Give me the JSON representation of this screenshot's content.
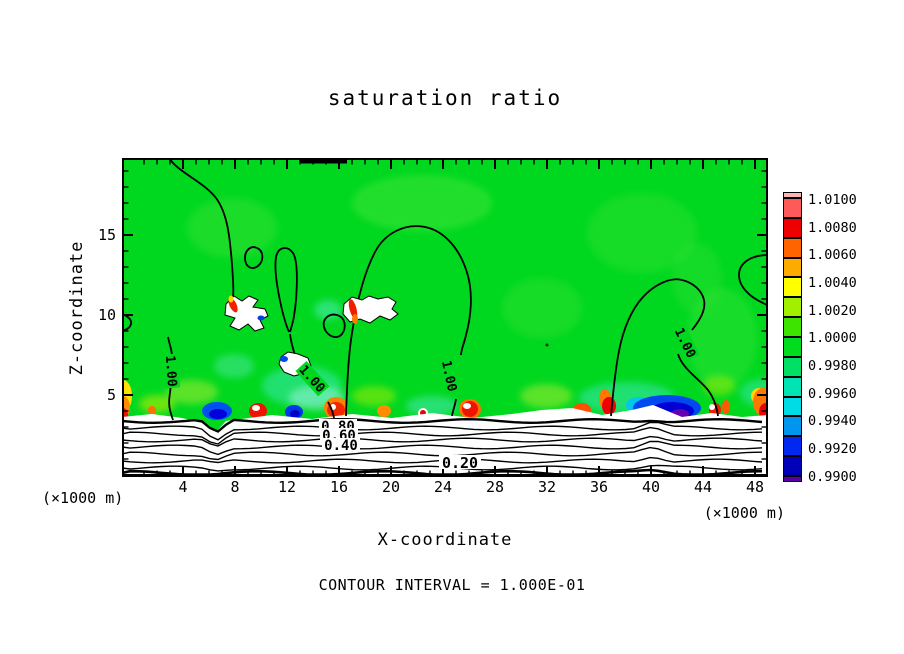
{
  "title": "saturation ratio",
  "axes": {
    "x": {
      "label": "X-coordinate",
      "unit_left": "(×1000 m)",
      "unit_right": "(×1000 m)",
      "ticks": [
        "4",
        "8",
        "12",
        "16",
        "20",
        "24",
        "28",
        "32",
        "36",
        "40",
        "44",
        "48"
      ]
    },
    "z": {
      "label": "Z-coordinate",
      "ticks": [
        "15",
        "10",
        "5"
      ]
    }
  },
  "colorbar": {
    "labels": [
      "1.0100",
      "1.0080",
      "1.0060",
      "1.0040",
      "1.0020",
      "1.0000",
      "0.9980",
      "0.9960",
      "0.9940",
      "0.9920",
      "0.9900"
    ],
    "colors": [
      "#ffb4b4",
      "#ff5a5a",
      "#ee0000",
      "#ff6400",
      "#ffaa00",
      "#ffff00",
      "#a0f000",
      "#3ce400",
      "#00dc1e",
      "#00e064",
      "#00e4b4",
      "#00dce6",
      "#0096f0",
      "#0028f0",
      "#0000b9",
      "#5a00a8"
    ]
  },
  "contour_labels": {
    "one": "1.00",
    "l080": "0.80",
    "l060": "0.60",
    "l040": "0.40",
    "l020": "0.20"
  },
  "footer": "CONTOUR INTERVAL = 1.000E-01",
  "chart_data": {
    "type": "heatmap",
    "title": "saturation ratio",
    "xlabel": "X-coordinate",
    "ylabel": "Z-coordinate",
    "x_units": "×1000 m",
    "z_units": "×1000 m",
    "x_ticks": [
      4,
      8,
      12,
      16,
      20,
      24,
      28,
      32,
      36,
      40,
      44,
      48
    ],
    "z_ticks": [
      5,
      10,
      15
    ],
    "x_range": [
      0,
      49.5
    ],
    "z_range": [
      0,
      20
    ],
    "fill_levels": [
      0.99,
      0.992,
      0.994,
      0.996,
      0.998,
      1.0,
      1.002,
      1.004,
      1.006,
      1.008,
      1.01
    ],
    "fill_colors": [
      "#5a00a8",
      "#0000b9",
      "#0028f0",
      "#0096f0",
      "#00dce6",
      "#00e4b4",
      "#00e064",
      "#00dc1e",
      "#3ce400",
      "#a0f000",
      "#ffff00",
      "#ffaa00",
      "#ff6400",
      "#ee0000",
      "#ff5a5a",
      "#ffb4b4"
    ],
    "contour_interval": 0.1,
    "labeled_contours": [
      1.0,
      0.8,
      0.6,
      0.4,
      0.2
    ],
    "legend_position": "right",
    "grid": false,
    "field_summary": "Saturation ratio is ~1.00 (green) over most of the domain with localized +/-0.01 anomalies (red/orange and blue/white pockets) near z=3-4 km; below z=3 km the ratio falls off rapidly through the 0.80, 0.60, 0.40 and 0.20 contours toward the surface (white layered band)."
  }
}
